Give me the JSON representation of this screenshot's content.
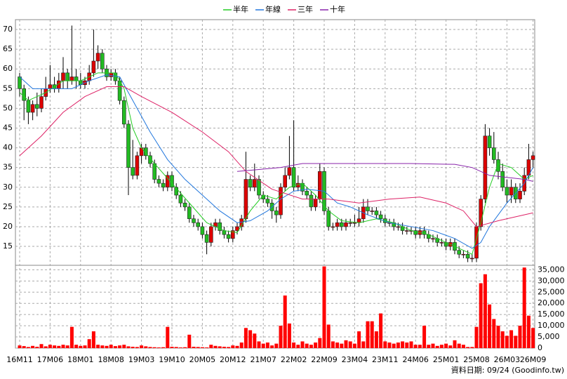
{
  "chart_data": {
    "type": "candlestick",
    "source": "資料日期: 09/24 (Goodinfo.tw)",
    "categories": [
      "16M11",
      null,
      null,
      null,
      null,
      null,
      null,
      "17M06",
      null,
      null,
      null,
      null,
      null,
      null,
      "18M01",
      null,
      null,
      null,
      null,
      null,
      null,
      "18M08",
      null,
      null,
      null,
      null,
      null,
      null,
      "19M03",
      null,
      null,
      null,
      null,
      null,
      null,
      "19M10",
      null,
      null,
      null,
      null,
      null,
      null,
      "20M05",
      null,
      null,
      null,
      null,
      null,
      null,
      "20M12",
      null,
      null,
      null,
      null,
      null,
      null,
      "21M07",
      null,
      null,
      null,
      null,
      null,
      null,
      "22M02",
      null,
      null,
      null,
      null,
      null,
      null,
      "22M09",
      null,
      null,
      null,
      null,
      null,
      null,
      "23M04",
      null,
      null,
      null,
      null,
      null,
      null,
      "23M11",
      null,
      null,
      null,
      null,
      null,
      null,
      "24M06",
      null,
      null,
      null,
      null,
      null,
      null,
      "25M01",
      null,
      null,
      null,
      null,
      null,
      null,
      "25M08",
      null,
      null,
      null,
      null,
      null,
      null,
      "26M03",
      null,
      null,
      null,
      null,
      null,
      "26M09"
    ],
    "ohlc": [
      [
        58,
        59,
        53,
        55
      ],
      [
        55,
        56,
        47,
        52
      ],
      [
        52,
        53,
        46,
        49
      ],
      [
        49,
        52,
        47,
        51
      ],
      [
        51,
        54,
        48,
        50
      ],
      [
        50,
        55,
        49,
        53
      ],
      [
        53,
        58,
        52,
        55
      ],
      [
        55,
        61,
        54,
        56
      ],
      [
        56,
        58,
        54,
        55
      ],
      [
        55,
        59,
        54,
        57
      ],
      [
        57,
        63,
        55,
        59
      ],
      [
        59,
        60,
        55,
        57
      ],
      [
        57,
        71,
        56,
        58
      ],
      [
        58,
        60,
        55,
        57
      ],
      [
        57,
        59,
        55,
        56
      ],
      [
        56,
        58,
        55,
        57
      ],
      [
        57,
        61,
        56,
        59
      ],
      [
        59,
        70,
        58,
        62
      ],
      [
        62,
        66,
        60,
        64
      ],
      [
        64,
        65,
        59,
        60
      ],
      [
        60,
        61,
        57,
        58
      ],
      [
        58,
        60,
        57,
        59
      ],
      [
        59,
        60,
        56,
        57
      ],
      [
        57,
        58,
        51,
        52
      ],
      [
        52,
        53,
        45,
        46
      ],
      [
        46,
        47,
        28,
        35
      ],
      [
        35,
        42,
        32,
        33
      ],
      [
        33,
        39,
        32,
        38
      ],
      [
        38,
        41,
        36,
        40
      ],
      [
        40,
        41,
        37,
        38
      ],
      [
        38,
        39,
        35,
        36
      ],
      [
        36,
        37,
        31,
        32
      ],
      [
        32,
        33,
        30,
        31
      ],
      [
        31,
        32,
        29,
        30
      ],
      [
        30,
        34,
        29,
        33
      ],
      [
        33,
        34,
        29,
        30
      ],
      [
        30,
        31,
        27,
        28
      ],
      [
        28,
        29,
        25,
        26
      ],
      [
        26,
        27,
        24,
        25
      ],
      [
        25,
        26,
        21,
        22
      ],
      [
        22,
        23,
        20,
        21
      ],
      [
        21,
        22,
        19,
        20
      ],
      [
        20,
        21,
        17,
        18
      ],
      [
        18,
        19,
        13,
        16
      ],
      [
        16,
        21,
        15,
        20
      ],
      [
        20,
        22,
        19,
        21
      ],
      [
        21,
        22,
        18,
        19
      ],
      [
        19,
        20,
        17,
        18
      ],
      [
        18,
        19,
        16,
        17
      ],
      [
        17,
        20,
        16,
        19
      ],
      [
        19,
        21,
        18,
        20
      ],
      [
        20,
        23,
        19,
        22
      ],
      [
        22,
        39,
        21,
        32
      ],
      [
        32,
        33,
        29,
        30
      ],
      [
        30,
        36,
        29,
        32
      ],
      [
        32,
        33,
        27,
        28
      ],
      [
        28,
        29,
        26,
        27
      ],
      [
        27,
        28,
        25,
        26
      ],
      [
        26,
        27,
        22,
        24
      ],
      [
        24,
        25,
        21,
        23
      ],
      [
        23,
        31,
        22,
        30
      ],
      [
        30,
        35,
        29,
        33
      ],
      [
        33,
        43,
        32,
        35
      ],
      [
        35,
        47,
        29,
        30
      ],
      [
        30,
        33,
        29,
        31
      ],
      [
        31,
        32,
        28,
        29
      ],
      [
        29,
        30,
        27,
        28
      ],
      [
        28,
        29,
        24,
        25
      ],
      [
        25,
        28,
        24,
        27
      ],
      [
        27,
        36,
        26,
        34
      ],
      [
        34,
        35,
        23,
        24
      ],
      [
        24,
        25,
        19,
        20
      ],
      [
        20,
        21,
        19,
        20
      ],
      [
        20,
        22,
        19,
        21
      ],
      [
        21,
        22,
        19,
        20
      ],
      [
        20,
        22,
        19,
        21
      ],
      [
        21,
        22,
        20,
        21
      ],
      [
        21,
        23,
        20,
        21
      ],
      [
        21,
        25,
        20,
        22
      ],
      [
        22,
        27,
        21,
        25
      ],
      [
        25,
        27,
        23,
        24
      ],
      [
        24,
        25,
        23,
        24
      ],
      [
        24,
        25,
        22,
        23
      ],
      [
        23,
        24,
        21,
        22
      ],
      [
        22,
        23,
        20,
        21
      ],
      [
        21,
        22,
        20,
        21
      ],
      [
        21,
        22,
        19,
        20
      ],
      [
        20,
        21,
        19,
        20
      ],
      [
        20,
        21,
        18,
        19
      ],
      [
        19,
        20,
        18,
        19
      ],
      [
        19,
        20,
        18,
        19
      ],
      [
        19,
        20,
        17,
        18
      ],
      [
        18,
        20,
        17,
        19
      ],
      [
        19,
        20,
        17,
        18
      ],
      [
        18,
        19,
        16,
        17
      ],
      [
        17,
        18,
        16,
        17
      ],
      [
        17,
        18,
        15,
        16
      ],
      [
        16,
        17,
        15,
        16
      ],
      [
        16,
        17,
        14,
        15
      ],
      [
        15,
        17,
        14,
        16
      ],
      [
        16,
        17,
        13,
        14
      ],
      [
        14,
        15,
        12,
        13
      ],
      [
        13,
        14,
        12,
        13
      ],
      [
        13,
        14,
        11,
        12
      ],
      [
        12,
        13,
        11,
        12
      ],
      [
        12,
        21,
        11,
        20
      ],
      [
        20,
        28,
        19,
        27
      ],
      [
        27,
        46,
        26,
        43
      ],
      [
        43,
        45,
        38,
        40
      ],
      [
        40,
        44,
        36,
        37
      ],
      [
        37,
        39,
        32,
        34
      ],
      [
        34,
        36,
        29,
        30
      ],
      [
        30,
        32,
        26,
        28
      ],
      [
        28,
        32,
        26,
        30
      ],
      [
        30,
        31,
        26,
        27
      ],
      [
        27,
        31,
        26,
        29
      ],
      [
        29,
        35,
        28,
        33
      ],
      [
        33,
        41,
        32,
        37
      ],
      [
        37,
        39,
        35,
        38
      ]
    ],
    "up_color": "#dd0000",
    "down_color": "#22bb22",
    "volume": {
      "color": "#ff0000",
      "values": [
        1200,
        900,
        500,
        1000,
        600,
        1800,
        800,
        1500,
        1200,
        1000,
        1500,
        1200,
        9500,
        1500,
        1000,
        1200,
        4000,
        7500,
        1500,
        1200,
        1000,
        1500,
        900,
        1200,
        1500,
        800,
        600,
        500,
        1200,
        800,
        500,
        400,
        300,
        400,
        9500,
        600,
        500,
        300,
        400,
        6000,
        600,
        500,
        400,
        300,
        1500,
        1000,
        800,
        600,
        500,
        1200,
        1000,
        2500,
        9000,
        8000,
        6500,
        3000,
        2000,
        2500,
        1200,
        2000,
        10000,
        23500,
        11000,
        2500,
        1500,
        3000,
        2000,
        1500,
        2500,
        4500,
        36500,
        10500,
        3000,
        2500,
        2000,
        3500,
        3000,
        2000,
        7500,
        3000,
        12000,
        12000,
        7500,
        15500,
        3000,
        2500,
        2000,
        2500,
        3000,
        2500,
        3000,
        1500,
        1500,
        10000,
        1500,
        2000,
        1000,
        1500,
        2000,
        1200,
        3500,
        2000,
        1500,
        500,
        500,
        9500,
        29000,
        33000,
        19500,
        13000,
        10000,
        7500,
        5500,
        8000,
        5500,
        10000,
        36000,
        14500,
        9000
      ]
    },
    "series": [
      {
        "name": "半年",
        "color": "#22cc22",
        "x": [
          0,
          2,
          6,
          10,
          14,
          18,
          22,
          24,
          26,
          28,
          31,
          35,
          39,
          43,
          47,
          50,
          53,
          56,
          59,
          62,
          65,
          68,
          71,
          74,
          78,
          82,
          86,
          90,
          94,
          98,
          102,
          104,
          106,
          108,
          110,
          113,
          116,
          118
        ],
        "values": [
          54,
          52,
          54,
          57,
          57,
          59,
          59,
          55,
          45,
          40,
          36,
          31,
          26,
          21,
          19,
          18.5,
          24,
          28,
          27,
          30,
          31,
          28,
          24,
          21.5,
          21,
          22,
          21,
          19,
          18,
          16,
          14,
          13,
          21,
          30,
          36,
          35,
          32,
          33
        ]
      },
      {
        "name": "年線",
        "color": "#2277dd",
        "x": [
          0,
          3,
          8,
          12,
          16,
          20,
          23,
          26,
          30,
          34,
          38,
          42,
          46,
          50,
          53,
          57,
          60,
          63,
          66,
          70,
          73,
          76,
          80,
          85,
          90,
          95,
          100,
          104,
          106,
          108,
          112,
          116,
          118
        ],
        "values": [
          58,
          55,
          55,
          55,
          57,
          58.5,
          58,
          52,
          44,
          37,
          32,
          28,
          24,
          21,
          21.5,
          24,
          27,
          29,
          29.5,
          29,
          26,
          25,
          23,
          21,
          20,
          19,
          17,
          14.5,
          16,
          20,
          26,
          31,
          35
        ]
      },
      {
        "name": "三年",
        "color": "#dd2266",
        "x": [
          0,
          5,
          10,
          15,
          20,
          24,
          28,
          35,
          42,
          48,
          52,
          58,
          65,
          71,
          78,
          85,
          92,
          98,
          102,
          105,
          110,
          114,
          118
        ],
        "values": [
          38,
          43,
          49,
          53,
          55.5,
          55.5,
          53,
          49,
          44,
          39,
          34,
          29.5,
          27,
          27,
          26,
          27,
          27.5,
          26,
          24,
          20,
          21.5,
          22.5,
          23.5
        ]
      },
      {
        "name": "十年",
        "color": "#8822aa",
        "x": [
          50,
          55,
          60,
          65,
          70,
          80,
          90,
          100,
          104,
          108,
          112,
          116,
          118
        ],
        "values": [
          34,
          34.5,
          35,
          36,
          36,
          36,
          36,
          35.8,
          35,
          33,
          32.5,
          32,
          31.5
        ]
      }
    ],
    "ylim": [
      10.2,
      72.5
    ],
    "yticks": [
      15,
      20,
      25,
      30,
      35,
      40,
      45,
      50,
      55,
      60,
      65,
      70
    ],
    "y2lim": [
      0,
      37000
    ],
    "y2ticks": [
      0,
      {
        "value": 5000,
        "label": "5,000"
      },
      {
        "value": 10000,
        "label": "10,000"
      },
      {
        "value": 15000,
        "label": "15,000"
      },
      {
        "value": 20000,
        "label": "20,000"
      },
      {
        "value": 25000,
        "label": "25,000"
      },
      {
        "value": 30000,
        "label": "30,000"
      },
      {
        "value": 35000,
        "label": "35,000"
      }
    ],
    "grid": true
  }
}
